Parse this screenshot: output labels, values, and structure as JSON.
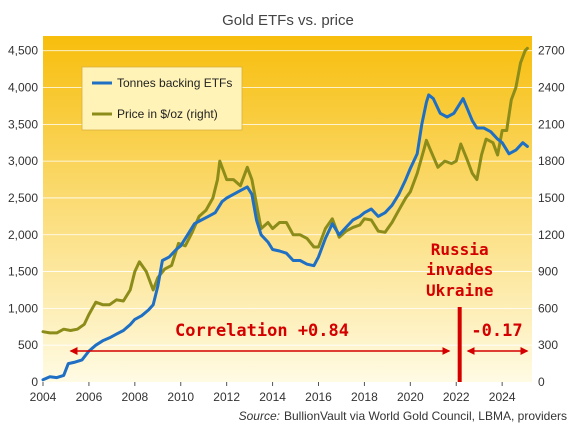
{
  "chart_data": {
    "type": "line",
    "title": "Gold ETFs vs. price",
    "x_range": [
      2004,
      2025.3
    ],
    "x_ticks": [
      "2004",
      "2006",
      "2008",
      "2010",
      "2012",
      "2014",
      "2016",
      "2018",
      "2020",
      "2022",
      "2024"
    ],
    "y_left": {
      "range": [
        0,
        4700
      ],
      "ticks": [
        "0",
        "500",
        "1,000",
        "1,500",
        "2,000",
        "2,500",
        "3,000",
        "3,500",
        "4,000",
        "4,500"
      ]
    },
    "y_right": {
      "range": [
        0,
        2820
      ],
      "ticks": [
        "0",
        "300",
        "600",
        "900",
        "1200",
        "1500",
        "1800",
        "2100",
        "2400",
        "2700"
      ]
    },
    "legend_position": "top-left",
    "series": [
      {
        "name": "Tonnes backing ETFs",
        "axis": "left",
        "color": "#1f6fc4",
        "points": [
          [
            2004.0,
            30
          ],
          [
            2004.3,
            70
          ],
          [
            2004.6,
            60
          ],
          [
            2004.9,
            90
          ],
          [
            2005.1,
            250
          ],
          [
            2005.4,
            270
          ],
          [
            2005.7,
            300
          ],
          [
            2006.0,
            420
          ],
          [
            2006.3,
            500
          ],
          [
            2006.6,
            560
          ],
          [
            2006.9,
            600
          ],
          [
            2007.2,
            650
          ],
          [
            2007.5,
            700
          ],
          [
            2007.8,
            780
          ],
          [
            2008.0,
            850
          ],
          [
            2008.3,
            900
          ],
          [
            2008.6,
            980
          ],
          [
            2008.8,
            1050
          ],
          [
            2009.0,
            1300
          ],
          [
            2009.2,
            1650
          ],
          [
            2009.5,
            1700
          ],
          [
            2009.8,
            1800
          ],
          [
            2010.0,
            1850
          ],
          [
            2010.3,
            2000
          ],
          [
            2010.6,
            2150
          ],
          [
            2010.9,
            2200
          ],
          [
            2011.2,
            2250
          ],
          [
            2011.5,
            2300
          ],
          [
            2011.8,
            2450
          ],
          [
            2012.0,
            2500
          ],
          [
            2012.3,
            2550
          ],
          [
            2012.6,
            2600
          ],
          [
            2012.9,
            2650
          ],
          [
            2013.1,
            2550
          ],
          [
            2013.3,
            2200
          ],
          [
            2013.5,
            2000
          ],
          [
            2013.8,
            1900
          ],
          [
            2014.0,
            1800
          ],
          [
            2014.3,
            1780
          ],
          [
            2014.6,
            1750
          ],
          [
            2014.9,
            1650
          ],
          [
            2015.2,
            1650
          ],
          [
            2015.5,
            1600
          ],
          [
            2015.8,
            1580
          ],
          [
            2016.0,
            1700
          ],
          [
            2016.3,
            1950
          ],
          [
            2016.6,
            2150
          ],
          [
            2016.9,
            2000
          ],
          [
            2017.2,
            2100
          ],
          [
            2017.5,
            2200
          ],
          [
            2017.8,
            2250
          ],
          [
            2018.0,
            2300
          ],
          [
            2018.3,
            2350
          ],
          [
            2018.6,
            2250
          ],
          [
            2018.9,
            2300
          ],
          [
            2019.2,
            2400
          ],
          [
            2019.5,
            2550
          ],
          [
            2019.8,
            2750
          ],
          [
            2020.0,
            2900
          ],
          [
            2020.3,
            3100
          ],
          [
            2020.5,
            3500
          ],
          [
            2020.7,
            3800
          ],
          [
            2020.8,
            3900
          ],
          [
            2021.0,
            3850
          ],
          [
            2021.3,
            3650
          ],
          [
            2021.6,
            3600
          ],
          [
            2021.9,
            3650
          ],
          [
            2022.1,
            3750
          ],
          [
            2022.3,
            3850
          ],
          [
            2022.5,
            3700
          ],
          [
            2022.7,
            3550
          ],
          [
            2022.9,
            3450
          ],
          [
            2023.2,
            3450
          ],
          [
            2023.5,
            3400
          ],
          [
            2023.8,
            3300
          ],
          [
            2024.0,
            3250
          ],
          [
            2024.3,
            3100
          ],
          [
            2024.6,
            3150
          ],
          [
            2024.9,
            3250
          ],
          [
            2025.1,
            3200
          ]
        ]
      },
      {
        "name": "Price in $/oz (right)",
        "axis": "right",
        "color": "#8c8c1a",
        "points": [
          [
            2004.0,
            410
          ],
          [
            2004.3,
            400
          ],
          [
            2004.6,
            400
          ],
          [
            2004.9,
            430
          ],
          [
            2005.2,
            420
          ],
          [
            2005.5,
            430
          ],
          [
            2005.8,
            470
          ],
          [
            2006.0,
            550
          ],
          [
            2006.3,
            650
          ],
          [
            2006.6,
            630
          ],
          [
            2006.9,
            630
          ],
          [
            2007.2,
            670
          ],
          [
            2007.5,
            660
          ],
          [
            2007.8,
            750
          ],
          [
            2008.0,
            900
          ],
          [
            2008.2,
            980
          ],
          [
            2008.5,
            900
          ],
          [
            2008.8,
            750
          ],
          [
            2009.0,
            850
          ],
          [
            2009.3,
            920
          ],
          [
            2009.6,
            950
          ],
          [
            2009.9,
            1130
          ],
          [
            2010.2,
            1110
          ],
          [
            2010.5,
            1220
          ],
          [
            2010.8,
            1350
          ],
          [
            2011.1,
            1400
          ],
          [
            2011.4,
            1500
          ],
          [
            2011.6,
            1650
          ],
          [
            2011.7,
            1800
          ],
          [
            2012.0,
            1650
          ],
          [
            2012.3,
            1650
          ],
          [
            2012.6,
            1600
          ],
          [
            2012.9,
            1750
          ],
          [
            2013.1,
            1650
          ],
          [
            2013.3,
            1450
          ],
          [
            2013.5,
            1250
          ],
          [
            2013.8,
            1300
          ],
          [
            2014.0,
            1250
          ],
          [
            2014.3,
            1300
          ],
          [
            2014.6,
            1300
          ],
          [
            2014.9,
            1200
          ],
          [
            2015.2,
            1200
          ],
          [
            2015.5,
            1170
          ],
          [
            2015.8,
            1100
          ],
          [
            2016.0,
            1100
          ],
          [
            2016.3,
            1250
          ],
          [
            2016.6,
            1330
          ],
          [
            2016.9,
            1180
          ],
          [
            2017.2,
            1230
          ],
          [
            2017.5,
            1260
          ],
          [
            2017.8,
            1280
          ],
          [
            2018.0,
            1330
          ],
          [
            2018.3,
            1320
          ],
          [
            2018.6,
            1230
          ],
          [
            2018.9,
            1220
          ],
          [
            2019.2,
            1300
          ],
          [
            2019.5,
            1400
          ],
          [
            2019.8,
            1500
          ],
          [
            2020.0,
            1550
          ],
          [
            2020.3,
            1700
          ],
          [
            2020.6,
            1900
          ],
          [
            2020.7,
            1970
          ],
          [
            2020.9,
            1880
          ],
          [
            2021.2,
            1750
          ],
          [
            2021.5,
            1800
          ],
          [
            2021.8,
            1780
          ],
          [
            2022.0,
            1800
          ],
          [
            2022.2,
            1940
          ],
          [
            2022.5,
            1800
          ],
          [
            2022.7,
            1700
          ],
          [
            2022.9,
            1650
          ],
          [
            2023.1,
            1850
          ],
          [
            2023.3,
            1980
          ],
          [
            2023.6,
            1950
          ],
          [
            2023.8,
            1850
          ],
          [
            2024.0,
            2050
          ],
          [
            2024.2,
            2050
          ],
          [
            2024.4,
            2300
          ],
          [
            2024.6,
            2400
          ],
          [
            2024.8,
            2600
          ],
          [
            2025.0,
            2700
          ],
          [
            2025.1,
            2720
          ]
        ]
      }
    ],
    "annotations": {
      "event": {
        "lines": [
          "Russia",
          "invades",
          "Ukraine"
        ],
        "x": 2022.15
      },
      "correlation_before": {
        "text": "Correlation +0.84",
        "from": 2005.2,
        "to": 2021.7
      },
      "correlation_after": {
        "text": "-0.17",
        "from": 2022.5,
        "to": 2025.1
      }
    },
    "source": {
      "label": "Source:",
      "text": "BullionVault via World Gold Council, LBMA, providers"
    }
  },
  "colors": {
    "bg_top": "#f7be0c",
    "bg_bottom": "#fffbe4",
    "etf_line": "#1f6fc4",
    "price_line": "#8c8c1a",
    "annotation": "#d40000",
    "grid": "#ffffff"
  }
}
